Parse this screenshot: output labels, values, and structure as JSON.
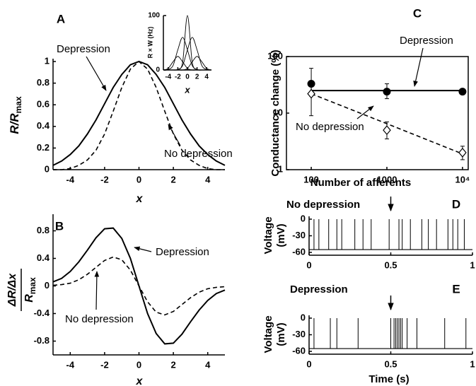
{
  "chart_data": [
    {
      "type": "line",
      "panel_label": "A",
      "ylabel": {
        "main": "R/R",
        "sub": "max"
      },
      "xlabel": "x",
      "x": [
        -5,
        -4.5,
        -4,
        -3.5,
        -3,
        -2.5,
        -2,
        -1.5,
        -1,
        -0.5,
        0,
        0.5,
        1,
        1.5,
        2,
        2.5,
        3,
        3.5,
        4,
        4.5,
        5
      ],
      "series": [
        {
          "name": "Depression",
          "color": "#000000",
          "dash": false,
          "values": [
            0.04,
            0.08,
            0.14,
            0.22,
            0.33,
            0.46,
            0.61,
            0.76,
            0.88,
            0.97,
            1,
            0.97,
            0.88,
            0.76,
            0.61,
            0.46,
            0.33,
            0.22,
            0.14,
            0.08,
            0.04
          ]
        },
        {
          "name": "No depression",
          "color": "#000000",
          "dash": true,
          "values": [
            0,
            0,
            0.01,
            0.04,
            0.09,
            0.18,
            0.33,
            0.54,
            0.76,
            0.93,
            1,
            0.93,
            0.76,
            0.54,
            0.33,
            0.18,
            0.09,
            0.04,
            0.01,
            0,
            0
          ]
        }
      ],
      "xlim": [
        -5,
        5
      ],
      "ylim": [
        0,
        1
      ],
      "xticks": [
        -4,
        -2,
        0,
        2,
        4
      ],
      "yticks": [
        0,
        0.2,
        0.4,
        0.6,
        0.8,
        1
      ]
    },
    {
      "type": "line",
      "ylabel": "R × W (Hz)",
      "xlabel": "x",
      "x": [
        -5,
        -4,
        -3,
        -2,
        -1,
        0,
        1,
        2,
        3,
        4,
        5
      ],
      "series": [
        {
          "color": "#000000",
          "values": [
            0,
            3,
            15,
            25,
            15,
            3,
            0,
            0,
            0,
            0,
            0
          ]
        },
        {
          "color": "#000000",
          "values": [
            0,
            1,
            8,
            37,
            60,
            37,
            8,
            1,
            0,
            0,
            0
          ]
        },
        {
          "color": "#000000",
          "values": [
            0,
            0,
            0,
            1,
            14,
            100,
            14,
            1,
            0,
            0,
            0
          ]
        },
        {
          "color": "#000000",
          "values": [
            0,
            0,
            0,
            1,
            8,
            37,
            60,
            37,
            8,
            1,
            0
          ]
        },
        {
          "color": "#000000",
          "values": [
            0,
            0,
            0,
            0,
            0,
            3,
            15,
            25,
            15,
            3,
            0
          ]
        }
      ],
      "xlim": [
        -5,
        5
      ],
      "ylim": [
        0,
        100
      ],
      "xticks": [
        -4,
        -2,
        0,
        2,
        4
      ],
      "yticks": [
        0,
        100
      ]
    },
    {
      "type": "line",
      "panel_label": "B",
      "ylabel_numerator": "ΔR/Δx",
      "ylabel_denominator": {
        "main": "R",
        "sub": "max"
      },
      "xlabel": "x",
      "x": [
        -5,
        -4.5,
        -4,
        -3.5,
        -3,
        -2.5,
        -2,
        -1.5,
        -1,
        -0.5,
        0,
        0.5,
        1,
        1.5,
        2,
        2.5,
        3,
        3.5,
        4,
        4.5,
        5
      ],
      "series": [
        {
          "name": "Depression",
          "color": "#000000",
          "dash": false,
          "values": [
            0.06,
            0.11,
            0.21,
            0.35,
            0.52,
            0.7,
            0.83,
            0.84,
            0.69,
            0.4,
            0,
            -0.4,
            -0.69,
            -0.84,
            -0.83,
            -0.7,
            -0.52,
            -0.35,
            -0.21,
            -0.11,
            -0.06
          ]
        },
        {
          "name": "No depression",
          "color": "#000000",
          "dash": true,
          "values": [
            0.01,
            0.02,
            0.04,
            0.09,
            0.17,
            0.27,
            0.37,
            0.42,
            0.38,
            0.23,
            0,
            -0.23,
            -0.38,
            -0.42,
            -0.37,
            -0.27,
            -0.17,
            -0.09,
            -0.04,
            -0.02,
            -0.01
          ]
        }
      ],
      "xlim": [
        -5,
        5
      ],
      "ylim": [
        -1,
        1
      ],
      "xticks": [
        -4,
        -2,
        0,
        2,
        4
      ],
      "yticks": [
        -0.8,
        -0.4,
        0,
        0.4,
        0.8
      ]
    },
    {
      "type": "scatter",
      "panel_label": "C",
      "ylabel": "Conductance change (%)",
      "xlabel": "Number of afferents",
      "log_x": true,
      "log_y": true,
      "x": [
        100,
        1000,
        10000
      ],
      "series": [
        {
          "name": "Depression",
          "color": "#000000",
          "marker": "filled",
          "dash": false,
          "values": [
            33,
            24,
            24
          ],
          "ylow": [
            20,
            18,
            22
          ],
          "yhigh": [
            62,
            33,
            27
          ],
          "fit": [
            25,
            25,
            25
          ]
        },
        {
          "name": "No depression",
          "color": "#000000",
          "marker": "open",
          "dash": true,
          "values": [
            22,
            5,
            2
          ],
          "ylow": [
            9,
            3.5,
            1.5
          ],
          "yhigh": [
            30,
            7,
            2.6
          ],
          "fit": [
            22,
            6.5,
            1.9
          ]
        }
      ],
      "xlim": [
        47,
        11900
      ],
      "ylim": [
        1,
        100
      ],
      "xticks": [
        100,
        1000,
        {
          "value": 10000,
          "label": "10⁴"
        }
      ],
      "yticks": [
        1,
        10,
        100
      ]
    },
    {
      "type": "spike_train",
      "panel_label": "D",
      "title": "No depression",
      "ylabel": [
        "Voltage",
        "(mV)"
      ],
      "xlim": [
        0,
        1
      ],
      "ylim": [
        -60,
        0
      ],
      "xticks": [
        0,
        0.5,
        1
      ],
      "yticks": [
        -60,
        -30,
        0
      ],
      "baseline": -55,
      "spike_peak": 0,
      "stimulus_time": 0.5,
      "spike_times": [
        0.03,
        0.06,
        0.12,
        0.17,
        0.2,
        0.28,
        0.33,
        0.38,
        0.49,
        0.55,
        0.57,
        0.62,
        0.69,
        0.73,
        0.78,
        0.85,
        0.88,
        0.91,
        0.95
      ]
    },
    {
      "type": "spike_train",
      "panel_label": "E",
      "title": "Depression",
      "ylabel": [
        "Voltage",
        "(mV)"
      ],
      "xlabel": "Time (s)",
      "xlim": [
        0,
        1
      ],
      "ylim": [
        -60,
        0
      ],
      "xticks": [
        0,
        0.5,
        1
      ],
      "yticks": [
        -60,
        -30,
        0
      ],
      "baseline": -55,
      "spike_peak": 0,
      "stimulus_time": 0.5,
      "spike_times": [
        0.03,
        0.13,
        0.17,
        0.3,
        0.5,
        0.52,
        0.53,
        0.54,
        0.55,
        0.56,
        0.57,
        0.6,
        0.66,
        0.83,
        0.96
      ]
    }
  ]
}
